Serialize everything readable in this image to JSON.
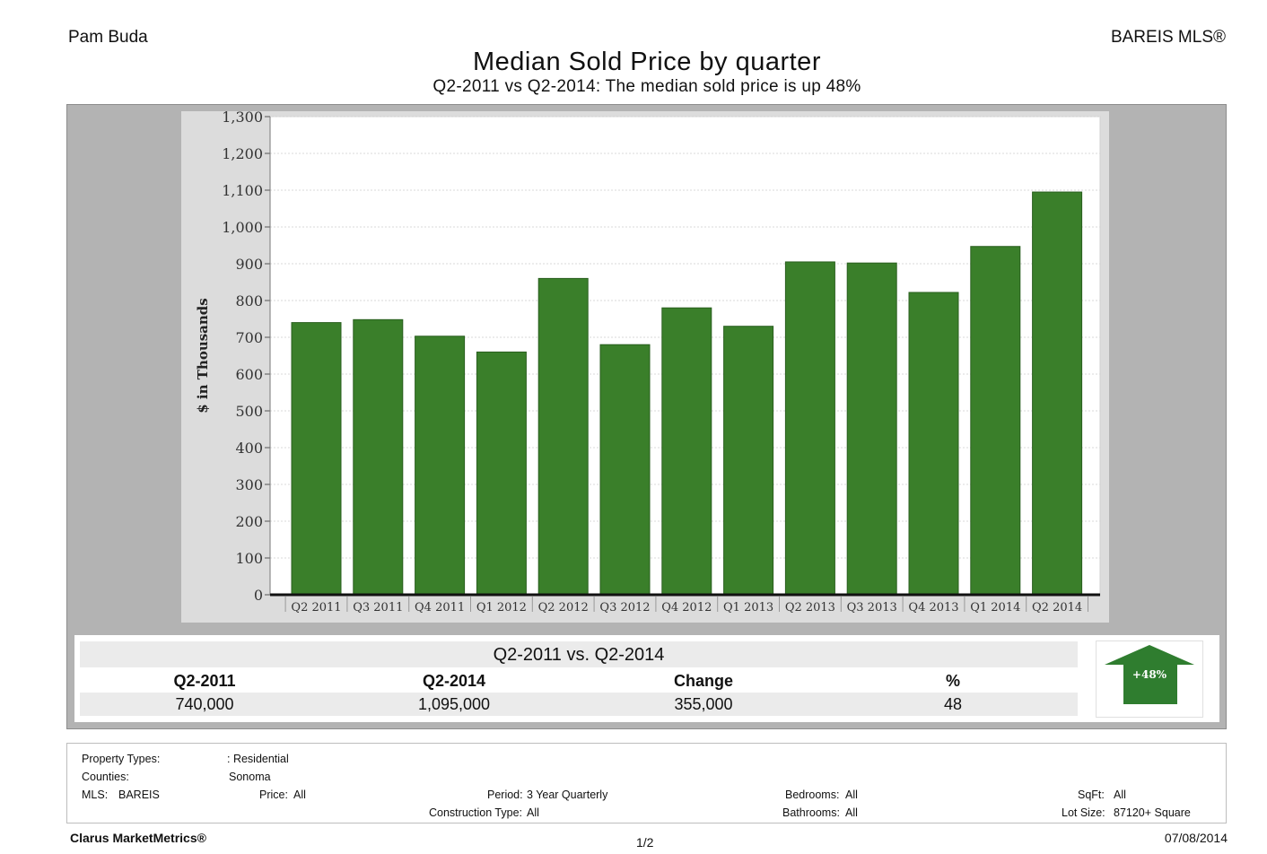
{
  "header": {
    "agent": "Pam Buda",
    "source": "BAREIS MLS®",
    "title": "Median Sold Price by quarter",
    "subtitle": "Q2-2011 vs Q2-2014: The median sold price is up 48%"
  },
  "chart_data": {
    "type": "bar",
    "title": "Median Sold Price by quarter",
    "xlabel": "",
    "ylabel": "$ in Thousands",
    "ylim": [
      0,
      1300
    ],
    "yticks": [
      0,
      100,
      200,
      300,
      400,
      500,
      600,
      700,
      800,
      900,
      1000,
      1100,
      1200,
      1300
    ],
    "ytick_labels": [
      "0",
      "100",
      "200",
      "300",
      "400",
      "500",
      "600",
      "700",
      "800",
      "900",
      "1,000",
      "1,100",
      "1,200",
      "1,300"
    ],
    "categories": [
      "Q2 2011",
      "Q3 2011",
      "Q4 2011",
      "Q1 2012",
      "Q2 2012",
      "Q3 2012",
      "Q4 2012",
      "Q1 2013",
      "Q2 2013",
      "Q3 2013",
      "Q4 2013",
      "Q1 2014",
      "Q2 2014"
    ],
    "values": [
      740,
      748,
      703,
      660,
      860,
      680,
      780,
      730,
      905,
      902,
      822,
      947,
      1095
    ],
    "grid": true,
    "bar_color": "#3a7f2a"
  },
  "summary": {
    "caption": "Q2-2011 vs. Q2-2014",
    "headers": [
      "Q2-2011",
      "Q2-2014",
      "Change",
      "%"
    ],
    "values": [
      "740,000",
      "1,095,000",
      "355,000",
      "48"
    ],
    "arrow_label": "+48%",
    "arrow_color": "#2f7d2f"
  },
  "filters": {
    "property_types_label": "Property Types:",
    "property_types_value": ": Residential",
    "counties_label": "Counties:",
    "counties_value": "Sonoma",
    "mls_label": "MLS:",
    "mls_value": "BAREIS",
    "price_label": "Price:",
    "price_value": "All",
    "period_label": "Period:",
    "period_value": "3 Year Quarterly",
    "construction_label": "Construction Type:",
    "construction_value": "All",
    "bedrooms_label": "Bedrooms:",
    "bedrooms_value": "All",
    "bathrooms_label": "Bathrooms:",
    "bathrooms_value": "All",
    "sqft_label": "SqFt:",
    "sqft_value": "All",
    "lotsize_label": "Lot Size:",
    "lotsize_value": "87120+ Square"
  },
  "footer": {
    "brand": "Clarus MarketMetrics®",
    "page": "1/2",
    "date": "07/08/2014"
  }
}
